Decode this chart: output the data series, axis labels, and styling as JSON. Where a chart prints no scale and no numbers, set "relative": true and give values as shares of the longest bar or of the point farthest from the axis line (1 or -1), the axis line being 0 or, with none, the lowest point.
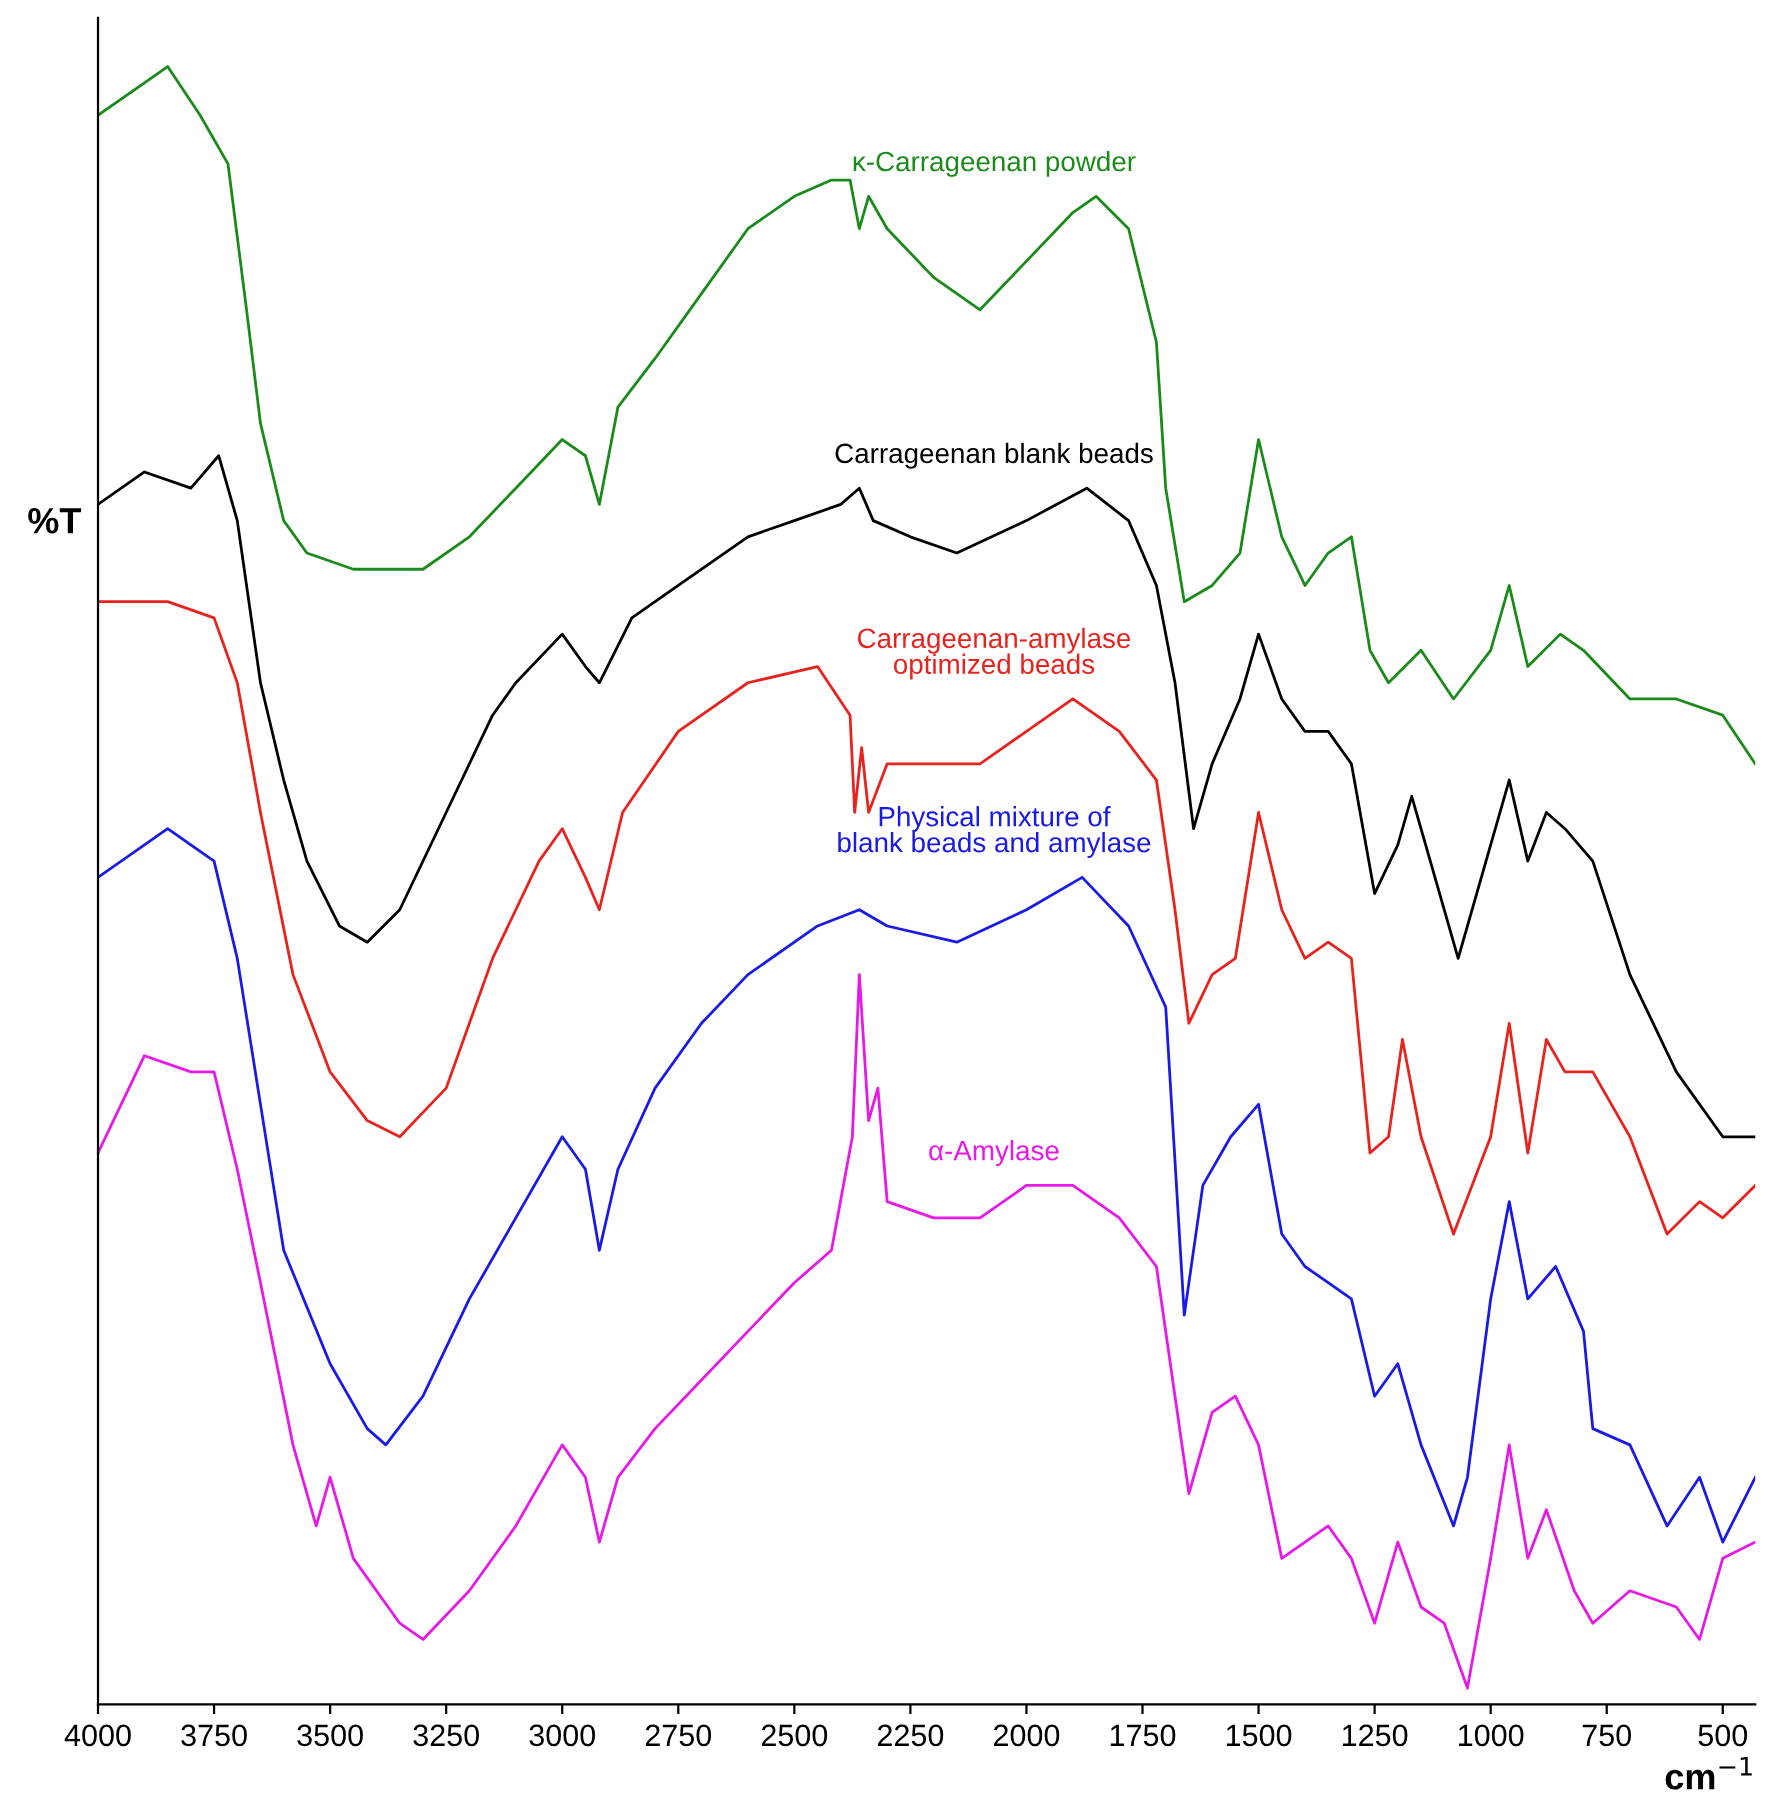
{
  "chart_data": {
    "type": "line",
    "relative": true,
    "xlabel": "cm$^{−1}$",
    "ylabel": "%T",
    "xlim": [
      4000,
      430
    ],
    "xticks": [
      4000,
      3750,
      3500,
      3250,
      3000,
      2750,
      2500,
      2250,
      2000,
      1750,
      1500,
      1250,
      1000,
      750,
      500
    ],
    "grid": false,
    "legend": false,
    "marker": "none",
    "line_style": "solid",
    "series": [
      {
        "name": "κ-Carrageenan powder",
        "color": "#1a8a1a",
        "x": [
          4000,
          3900,
          3850,
          3780,
          3720,
          3680,
          3650,
          3600,
          3550,
          3450,
          3300,
          3200,
          3100,
          3000,
          2950,
          2920,
          2880,
          2800,
          2700,
          2600,
          2500,
          2420,
          2380,
          2360,
          2340,
          2300,
          2200,
          2100,
          2000,
          1900,
          1850,
          1780,
          1720,
          1700,
          1660,
          1600,
          1540,
          1500,
          1450,
          1400,
          1350,
          1300,
          1260,
          1220,
          1150,
          1080,
          1000,
          960,
          920,
          850,
          800,
          700,
          600,
          500,
          430
        ],
        "values": [
          0.97,
          0.99,
          1.0,
          0.97,
          0.94,
          0.85,
          0.78,
          0.72,
          0.7,
          0.69,
          0.69,
          0.71,
          0.74,
          0.77,
          0.76,
          0.73,
          0.79,
          0.82,
          0.86,
          0.9,
          0.92,
          0.93,
          0.93,
          0.9,
          0.92,
          0.9,
          0.87,
          0.85,
          0.88,
          0.91,
          0.92,
          0.9,
          0.83,
          0.74,
          0.67,
          0.68,
          0.7,
          0.77,
          0.71,
          0.68,
          0.7,
          0.71,
          0.64,
          0.62,
          0.64,
          0.61,
          0.64,
          0.68,
          0.63,
          0.65,
          0.64,
          0.61,
          0.61,
          0.6,
          0.57
        ]
      },
      {
        "name": "Carrageenan blank beads",
        "color": "#000000",
        "x": [
          4000,
          3900,
          3800,
          3740,
          3700,
          3650,
          3600,
          3550,
          3480,
          3420,
          3350,
          3250,
          3150,
          3100,
          3000,
          2950,
          2920,
          2850,
          2750,
          2600,
          2500,
          2400,
          2360,
          2330,
          2250,
          2150,
          2000,
          1870,
          1780,
          1720,
          1680,
          1640,
          1600,
          1540,
          1500,
          1450,
          1400,
          1350,
          1300,
          1250,
          1200,
          1170,
          1120,
          1070,
          1000,
          960,
          920,
          880,
          840,
          780,
          700,
          600,
          500,
          430
        ],
        "values": [
          0.73,
          0.75,
          0.74,
          0.76,
          0.72,
          0.62,
          0.56,
          0.51,
          0.47,
          0.46,
          0.48,
          0.54,
          0.6,
          0.62,
          0.65,
          0.63,
          0.62,
          0.66,
          0.68,
          0.71,
          0.72,
          0.73,
          0.74,
          0.72,
          0.71,
          0.7,
          0.72,
          0.74,
          0.72,
          0.68,
          0.62,
          0.53,
          0.57,
          0.61,
          0.65,
          0.61,
          0.59,
          0.59,
          0.57,
          0.49,
          0.52,
          0.55,
          0.5,
          0.45,
          0.52,
          0.56,
          0.51,
          0.54,
          0.53,
          0.51,
          0.44,
          0.38,
          0.34,
          0.34
        ]
      },
      {
        "name": "Carrageenan-amylase optimized beads",
        "color": "#e8231e",
        "x": [
          4000,
          3850,
          3750,
          3700,
          3650,
          3580,
          3500,
          3420,
          3350,
          3250,
          3150,
          3050,
          3000,
          2950,
          2920,
          2870,
          2750,
          2600,
          2450,
          2380,
          2370,
          2355,
          2340,
          2300,
          2200,
          2100,
          2000,
          1900,
          1800,
          1720,
          1680,
          1650,
          1600,
          1550,
          1500,
          1450,
          1400,
          1350,
          1300,
          1260,
          1220,
          1190,
          1150,
          1080,
          1000,
          960,
          920,
          880,
          840,
          780,
          700,
          620,
          550,
          500,
          430
        ],
        "values": [
          0.67,
          0.67,
          0.66,
          0.62,
          0.54,
          0.44,
          0.38,
          0.35,
          0.34,
          0.37,
          0.45,
          0.51,
          0.53,
          0.5,
          0.48,
          0.54,
          0.59,
          0.62,
          0.63,
          0.6,
          0.54,
          0.58,
          0.54,
          0.57,
          0.57,
          0.57,
          0.59,
          0.61,
          0.59,
          0.56,
          0.48,
          0.41,
          0.44,
          0.45,
          0.54,
          0.48,
          0.45,
          0.46,
          0.45,
          0.33,
          0.34,
          0.4,
          0.34,
          0.28,
          0.34,
          0.41,
          0.33,
          0.4,
          0.38,
          0.38,
          0.34,
          0.28,
          0.3,
          0.29,
          0.31
        ]
      },
      {
        "name": "Physical mixture of blank beads and amylase",
        "color": "#1a1ae6",
        "x": [
          4000,
          3850,
          3750,
          3700,
          3650,
          3600,
          3500,
          3420,
          3380,
          3300,
          3200,
          3100,
          3000,
          2950,
          2920,
          2880,
          2800,
          2700,
          2600,
          2450,
          2360,
          2300,
          2150,
          2000,
          1880,
          1780,
          1700,
          1660,
          1620,
          1560,
          1500,
          1450,
          1400,
          1350,
          1300,
          1250,
          1200,
          1150,
          1080,
          1050,
          1000,
          960,
          920,
          860,
          800,
          780,
          700,
          620,
          550,
          500,
          430
        ],
        "values": [
          0.5,
          0.53,
          0.51,
          0.45,
          0.36,
          0.27,
          0.2,
          0.16,
          0.15,
          0.18,
          0.24,
          0.29,
          0.34,
          0.32,
          0.27,
          0.32,
          0.37,
          0.41,
          0.44,
          0.47,
          0.48,
          0.47,
          0.46,
          0.48,
          0.5,
          0.47,
          0.42,
          0.23,
          0.31,
          0.34,
          0.36,
          0.28,
          0.26,
          0.25,
          0.24,
          0.18,
          0.2,
          0.15,
          0.1,
          0.13,
          0.24,
          0.3,
          0.24,
          0.26,
          0.22,
          0.16,
          0.15,
          0.1,
          0.13,
          0.09,
          0.13
        ]
      },
      {
        "name": "α-Amylase",
        "color": "#e619e6",
        "x": [
          4000,
          3900,
          3800,
          3750,
          3700,
          3650,
          3580,
          3530,
          3500,
          3450,
          3350,
          3300,
          3200,
          3100,
          3000,
          2950,
          2920,
          2880,
          2800,
          2700,
          2600,
          2500,
          2420,
          2375,
          2360,
          2340,
          2320,
          2300,
          2200,
          2100,
          2000,
          1900,
          1800,
          1720,
          1680,
          1650,
          1600,
          1550,
          1500,
          1450,
          1400,
          1350,
          1300,
          1250,
          1200,
          1150,
          1100,
          1050,
          1000,
          960,
          920,
          880,
          820,
          780,
          700,
          600,
          550,
          500,
          430
        ],
        "values": [
          0.33,
          0.39,
          0.38,
          0.38,
          0.32,
          0.25,
          0.15,
          0.1,
          0.13,
          0.08,
          0.04,
          0.03,
          0.06,
          0.1,
          0.15,
          0.13,
          0.09,
          0.13,
          0.16,
          0.19,
          0.22,
          0.25,
          0.27,
          0.34,
          0.44,
          0.35,
          0.37,
          0.3,
          0.29,
          0.29,
          0.31,
          0.31,
          0.29,
          0.26,
          0.18,
          0.12,
          0.17,
          0.18,
          0.15,
          0.08,
          0.09,
          0.1,
          0.08,
          0.04,
          0.09,
          0.05,
          0.04,
          0.0,
          0.08,
          0.15,
          0.08,
          0.11,
          0.06,
          0.04,
          0.06,
          0.05,
          0.03,
          0.08,
          0.09
        ]
      }
    ]
  }
}
